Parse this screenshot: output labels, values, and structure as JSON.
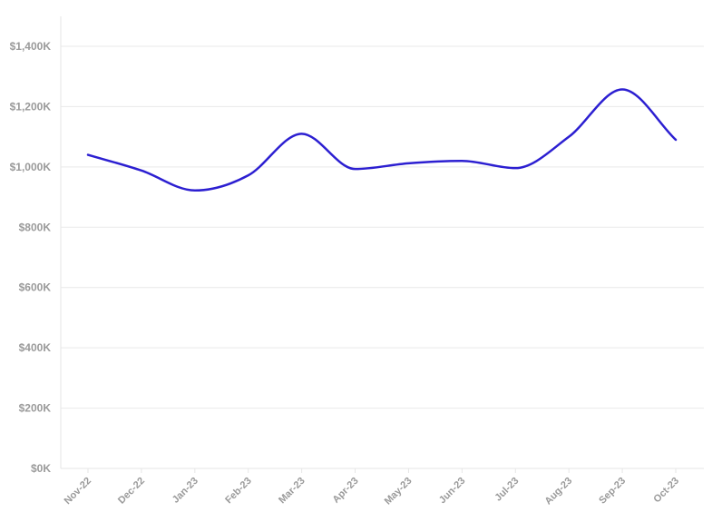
{
  "chart_data": {
    "type": "line",
    "title": "",
    "xlabel": "",
    "ylabel": "",
    "categories": [
      "Nov-22",
      "Dec-22",
      "Jan-23",
      "Feb-23",
      "Mar-23",
      "Apr-23",
      "May-23",
      "Jun-23",
      "Jul-23",
      "Aug-23",
      "Sep-23",
      "Oct-23"
    ],
    "series": [
      {
        "values": [
          1040000,
          988000,
          922000,
          972000,
          1110000,
          993000,
          1012000,
          1020000,
          996000,
          1100000,
          1257000,
          1090000
        ],
        "color": "#2c1fd1"
      }
    ],
    "ylim": [
      0,
      1400000
    ],
    "y_ticks": [
      0,
      200000,
      400000,
      600000,
      800000,
      1000000,
      1200000,
      1400000
    ],
    "y_tick_labels": [
      "$0K",
      "$200K",
      "$400K",
      "$600K",
      "$800K",
      "$1,000K",
      "$1,200K",
      "$1,400K"
    ],
    "grid": true,
    "smooth": true
  }
}
